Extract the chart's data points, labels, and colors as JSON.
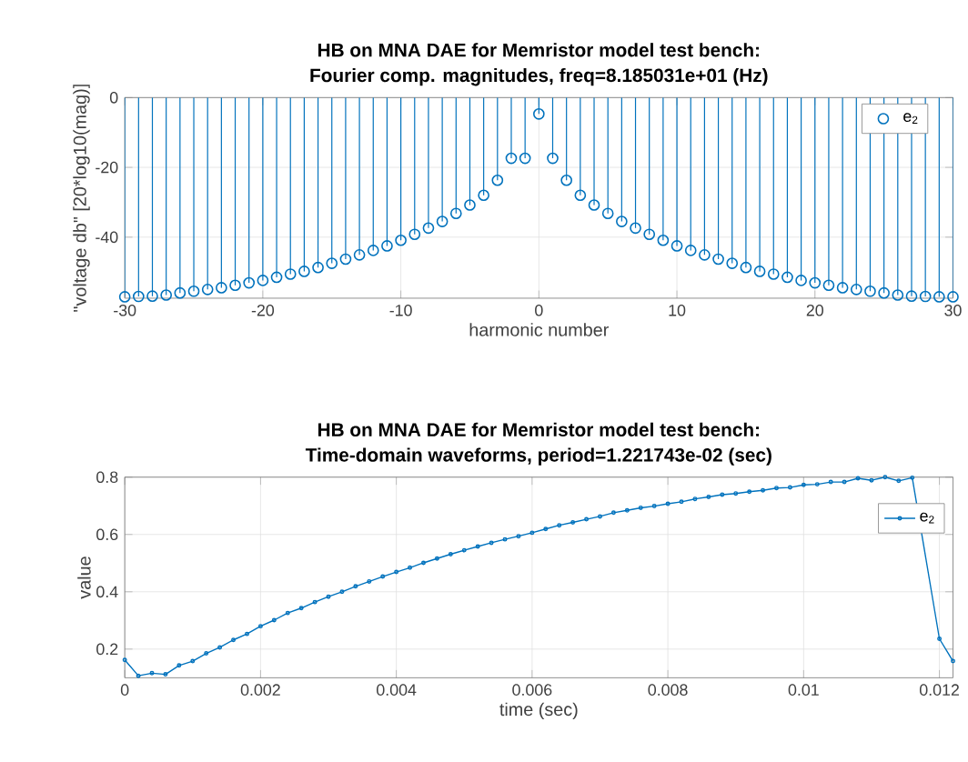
{
  "chart_data": [
    {
      "type": "lollipop",
      "title": "HB on MNA DAE for Memristor model test bench:",
      "subtitle": "Fourier comp. magnitudes, freq=8.185031e+01 (Hz)",
      "xlabel": "harmonic number",
      "ylabel": "\"voltage db\" [20*log10(mag)]",
      "xlim": [
        -30,
        30
      ],
      "xticks": [
        -30,
        -20,
        -10,
        0,
        10,
        20,
        30
      ],
      "ylim": [
        -57.5,
        0
      ],
      "yticks": [
        -40,
        -20,
        0
      ],
      "grid": true,
      "legend": "top right",
      "marker": "circle",
      "series": [
        {
          "name": "e$_{2}$",
          "color": "#0072bd",
          "x": [
            -30,
            -29,
            -28,
            -27,
            -26,
            -25,
            -24,
            -23,
            -22,
            -21,
            -20,
            -19,
            -18,
            -17,
            -16,
            -15,
            -14,
            -13,
            -12,
            -11,
            -10,
            -9,
            -8,
            -7,
            -6,
            -5,
            -4,
            -3,
            -2,
            -1,
            0,
            1,
            2,
            3,
            4,
            5,
            6,
            7,
            8,
            9,
            10,
            11,
            12,
            13,
            14,
            15,
            16,
            17,
            18,
            19,
            20,
            21,
            22,
            23,
            24,
            25,
            26,
            27,
            28,
            29,
            30
          ],
          "values": [
            -57.1,
            -57.0,
            -56.9,
            -56.6,
            -56.0,
            -55.5,
            -55.0,
            -54.5,
            -53.8,
            -53.1,
            -52.4,
            -51.5,
            -50.6,
            -49.8,
            -48.7,
            -47.5,
            -46.3,
            -45.1,
            -43.8,
            -42.5,
            -40.9,
            -39.2,
            -37.4,
            -35.5,
            -33.2,
            -30.8,
            -28.0,
            -23.7,
            -17.4,
            -17.4,
            -4.7,
            -17.4,
            -23.7,
            -28.0,
            -30.8,
            -33.2,
            -35.5,
            -37.4,
            -39.2,
            -40.9,
            -42.5,
            -43.8,
            -45.1,
            -46.3,
            -47.5,
            -48.7,
            -49.8,
            -50.6,
            -51.5,
            -52.4,
            -53.1,
            -53.8,
            -54.5,
            -55.0,
            -55.5,
            -56.0,
            -56.6,
            -56.9,
            -57.0,
            -57.1,
            -57.1
          ]
        }
      ]
    },
    {
      "type": "line",
      "title": "HB on MNA DAE for Memristor model test bench:",
      "subtitle": "Time-domain waveforms, period=1.221743e-02 (sec)",
      "xlabel": "time (sec)",
      "ylabel": "value",
      "xlim": [
        0,
        0.0122
      ],
      "xticks": [
        0,
        0.002,
        0.004,
        0.006,
        0.008,
        0.01,
        0.012
      ],
      "ylim": [
        0.1,
        0.8
      ],
      "yticks": [
        0.2,
        0.4,
        0.6,
        0.8
      ],
      "grid": true,
      "legend": "top right",
      "marker": "circle",
      "line_style": "solid",
      "series": [
        {
          "name": "e$_{2}$",
          "color": "#0072bd",
          "x": [
            0,
            0.0002,
            0.0004,
            0.0006,
            0.0008,
            0.001,
            0.0012,
            0.0014,
            0.0016,
            0.0018,
            0.002,
            0.0022,
            0.0024,
            0.0026,
            0.0028,
            0.003,
            0.0032,
            0.0034,
            0.0036,
            0.0038,
            0.004,
            0.0042,
            0.0044,
            0.0046,
            0.0048,
            0.005,
            0.0052,
            0.0054,
            0.0056,
            0.0058,
            0.006,
            0.0062,
            0.0064,
            0.0066,
            0.0068,
            0.007,
            0.0072,
            0.0074,
            0.0076,
            0.0078,
            0.008,
            0.0082,
            0.0084,
            0.0086,
            0.0088,
            0.009,
            0.0092,
            0.0094,
            0.0096,
            0.0098,
            0.01,
            0.0102,
            0.0104,
            0.0106,
            0.0108,
            0.011,
            0.0112,
            0.0114,
            0.0116,
            0.012,
            0.0122
          ],
          "values": [
            0.162,
            0.107,
            0.116,
            0.112,
            0.143,
            0.158,
            0.185,
            0.206,
            0.232,
            0.253,
            0.28,
            0.301,
            0.326,
            0.343,
            0.364,
            0.383,
            0.4,
            0.419,
            0.436,
            0.453,
            0.469,
            0.484,
            0.501,
            0.516,
            0.531,
            0.545,
            0.558,
            0.571,
            0.583,
            0.594,
            0.606,
            0.619,
            0.632,
            0.642,
            0.653,
            0.663,
            0.676,
            0.684,
            0.693,
            0.699,
            0.707,
            0.714,
            0.724,
            0.731,
            0.739,
            0.743,
            0.749,
            0.754,
            0.762,
            0.764,
            0.773,
            0.775,
            0.783,
            0.783,
            0.796,
            0.789,
            0.8,
            0.787,
            0.798,
            0.236,
            0.158
          ]
        }
      ]
    }
  ]
}
